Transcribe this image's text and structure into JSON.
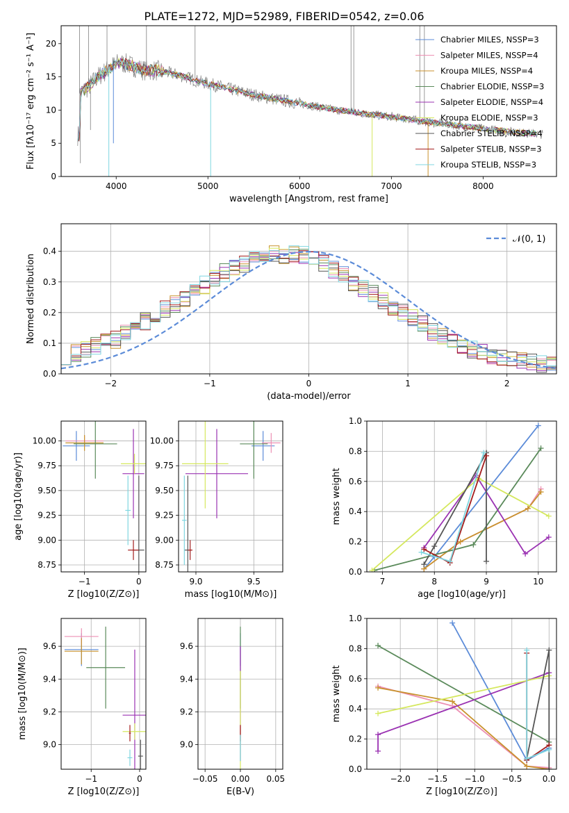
{
  "colors": {
    "chabrier_miles": "#5b8bd8",
    "salpeter_miles": "#ec8fb3",
    "kroupa_miles": "#c8922c",
    "chabrier_elodie": "#5a8a5a",
    "salpeter_elodie": "#9a32b2",
    "kroupa_elodie": "#d5e85e",
    "chabrier_stelib": "#555555",
    "salpeter_stelib": "#a31d1d",
    "kroupa_stelib": "#7fd6e0",
    "data": "#808080",
    "gauss": "#5b8bd8"
  },
  "chart_data": [
    {
      "type": "line",
      "title": "PLATE=1272, MJD=52989, FIBERID=0542, z=0.06",
      "xlabel": "wavelength [Angstrom, rest frame]",
      "ylabel": "Flux [fλ10⁻¹⁷ erg cm⁻² s⁻¹ A⁻¹]",
      "xlim": [
        3400,
        8800
      ],
      "ylim": [
        0,
        22.7
      ],
      "x_ticks": [
        4000,
        5000,
        6000,
        7000,
        8000
      ],
      "y_ticks": [
        0,
        5,
        10,
        15,
        20
      ],
      "grid": false,
      "legend_position": "top-right",
      "series": [
        {
          "name": "Chabrier MILES, NSSP=3"
        },
        {
          "name": "Salpeter MILES, NSSP=4"
        },
        {
          "name": "Kroupa MILES, NSSP=4"
        },
        {
          "name": "Chabrier ELODIE, NSSP=3"
        },
        {
          "name": "Salpeter ELODIE, NSSP=4"
        },
        {
          "name": "Kroupa ELODIE, NSSP=3"
        },
        {
          "name": "Chabrier STELIB, NSSP=4"
        },
        {
          "name": "Salpeter STELIB, NSSP=3"
        },
        {
          "name": "Kroupa STELIB, NSSP=3"
        }
      ],
      "continuum": {
        "x": [
          3600,
          3700,
          3800,
          3900,
          4000,
          4100,
          4200,
          4300,
          4400,
          4500,
          4600,
          4700,
          4800,
          4900,
          5000,
          5200,
          5400,
          5600,
          5800,
          6000,
          6200,
          6400,
          6600,
          6800,
          7000,
          7200,
          7400,
          7600,
          7800,
          8000,
          8200,
          8400,
          8600,
          8800
        ],
        "y": [
          12.5,
          13.5,
          15.0,
          16.0,
          17.0,
          17.0,
          16.5,
          16.0,
          16.0,
          15.8,
          15.5,
          15.2,
          14.8,
          14.3,
          14.0,
          13.3,
          12.6,
          12.0,
          11.5,
          11.0,
          10.5,
          10.0,
          9.7,
          9.3,
          9.0,
          8.6,
          8.2,
          7.9,
          7.5,
          7.2,
          6.9,
          6.6,
          6.4,
          6.2
        ]
      },
      "data_spikes": [
        {
          "x": 3600,
          "y": 22.7
        },
        {
          "x": 3610,
          "y": 2.0
        },
        {
          "x": 3700,
          "y": 22.7
        },
        {
          "x": 3720,
          "y": 7.0
        },
        {
          "x": 3900,
          "y": 22.7
        },
        {
          "x": 4330,
          "y": 22.7
        },
        {
          "x": 4860,
          "y": 22.7
        },
        {
          "x": 6560,
          "y": 22.7
        },
        {
          "x": 6590,
          "y": 22.7
        },
        {
          "x": 7310,
          "y": 22.7
        },
        {
          "x": 7360,
          "y": 22.7
        }
      ],
      "model_dips": [
        {
          "x": 3920,
          "y": 0
        },
        {
          "x": 3970,
          "y": 5.0
        },
        {
          "x": 5030,
          "y": 0
        },
        {
          "x": 6790,
          "y": 0
        },
        {
          "x": 7400,
          "y": 0
        }
      ]
    },
    {
      "type": "line",
      "xlabel": "(data-model)/error",
      "ylabel": "Normed distribution",
      "xlim": [
        -2.5,
        2.5
      ],
      "ylim": [
        0,
        0.49
      ],
      "x_ticks": [
        -2,
        -1,
        0,
        1,
        2
      ],
      "y_ticks": [
        0.0,
        0.1,
        0.2,
        0.3,
        0.4
      ],
      "grid": true,
      "legend": [
        "𝒩(0, 1)"
      ],
      "legend_position": "top-right",
      "gaussian_series": "N(0,1) dashed",
      "histogram_bins": [
        -2.5,
        -2.4,
        -2.3,
        -2.2,
        -2.1,
        -2.0,
        -1.9,
        -1.8,
        -1.7,
        -1.6,
        -1.5,
        -1.4,
        -1.3,
        -1.2,
        -1.1,
        -1.0,
        -0.9,
        -0.8,
        -0.7,
        -0.6,
        -0.5,
        -0.4,
        -0.3,
        -0.2,
        -0.1,
        0.0,
        0.1,
        0.2,
        0.3,
        0.4,
        0.5,
        0.6,
        0.7,
        0.8,
        0.9,
        1.0,
        1.1,
        1.2,
        1.3,
        1.4,
        1.5,
        1.6,
        1.7,
        1.8,
        1.9,
        2.0,
        2.1,
        2.2,
        2.3,
        2.4
      ],
      "histogram_mean": [
        0.06,
        0.07,
        0.08,
        0.09,
        0.1,
        0.11,
        0.13,
        0.15,
        0.17,
        0.19,
        0.21,
        0.23,
        0.25,
        0.27,
        0.29,
        0.31,
        0.33,
        0.35,
        0.36,
        0.37,
        0.38,
        0.39,
        0.39,
        0.39,
        0.39,
        0.38,
        0.36,
        0.34,
        0.32,
        0.3,
        0.28,
        0.26,
        0.24,
        0.22,
        0.2,
        0.18,
        0.16,
        0.14,
        0.12,
        0.1,
        0.09,
        0.08,
        0.07,
        0.06,
        0.05,
        0.05,
        0.04,
        0.04,
        0.03,
        0.03
      ]
    },
    {
      "type": "scatter",
      "xlabel": "Z [log10(Z/Z⊙)]",
      "ylabel": "age  [log10(age/yr)]",
      "xlim": [
        -1.43,
        0.13
      ],
      "ylim": [
        8.68,
        10.2
      ],
      "x_ticks": [
        -1,
        0
      ],
      "y_ticks": [
        8.75,
        9.0,
        9.25,
        9.5,
        9.75,
        10.0
      ],
      "grid": true,
      "points": [
        {
          "series": 0,
          "x": -1.15,
          "y": 9.95,
          "xerr": 0.25,
          "yerr": 0.15
        },
        {
          "series": 1,
          "x": -1.0,
          "y": 10.0,
          "xerr": 0.35,
          "yerr": 0.05
        },
        {
          "series": 2,
          "x": -1.0,
          "y": 9.98,
          "xerr": 0.35,
          "yerr": 0.08
        },
        {
          "series": 3,
          "x": -0.8,
          "y": 9.97,
          "xerr": 0.4,
          "yerr": 0.35
        },
        {
          "series": 4,
          "x": -0.1,
          "y": 9.67,
          "xerr": 0.2,
          "yerr": 0.45
        },
        {
          "series": 5,
          "x": -0.08,
          "y": 9.77,
          "xerr": 0.25,
          "yerr": 0.1
        },
        {
          "series": 6,
          "x": 0.0,
          "y": 8.9,
          "xerr": 0.1,
          "yerr": 0.75
        },
        {
          "series": 7,
          "x": -0.1,
          "y": 8.9,
          "xerr": 0.1,
          "yerr": 0.1
        },
        {
          "series": 8,
          "x": -0.2,
          "y": 9.3,
          "xerr": 0.05,
          "yerr": 0.35
        }
      ]
    },
    {
      "type": "scatter",
      "xlabel": "mass [log10(M/M⊙)]",
      "xlim": [
        8.85,
        9.75
      ],
      "ylim": [
        8.68,
        10.2
      ],
      "x_ticks": [
        9.0,
        9.5
      ],
      "y_ticks": [
        8.75,
        9.0,
        9.25,
        9.5,
        9.75,
        10.0
      ],
      "grid": true,
      "points": [
        {
          "series": 0,
          "x": 9.58,
          "y": 9.95,
          "xerr": 0.1,
          "yerr": 0.15
        },
        {
          "series": 1,
          "x": 9.65,
          "y": 9.98,
          "xerr": 0.08,
          "yerr": 0.1
        },
        {
          "series": 3,
          "x": 9.5,
          "y": 9.97,
          "xerr": 0.12,
          "yerr": 0.35
        },
        {
          "series": 4,
          "x": 9.18,
          "y": 9.67,
          "xerr": 0.27,
          "yerr": 0.45
        },
        {
          "series": 5,
          "x": 9.08,
          "y": 9.77,
          "xerr": 0.2,
          "yerr": 0.45
        },
        {
          "series": 6,
          "x": 8.93,
          "y": 8.9,
          "xerr": 0.03,
          "yerr": 0.75
        },
        {
          "series": 7,
          "x": 8.95,
          "y": 8.9,
          "xerr": 0.02,
          "yerr": 0.1
        },
        {
          "series": 8,
          "x": 8.9,
          "y": 9.2,
          "xerr": 0.02,
          "yerr": 0.45
        }
      ]
    },
    {
      "type": "line",
      "xlabel": "age  [log10(age/yr)]",
      "ylabel": "mass weight",
      "xlim": [
        6.7,
        10.35
      ],
      "ylim": [
        0,
        1.0
      ],
      "x_ticks": [
        7,
        8,
        9,
        10
      ],
      "y_ticks": [
        0.0,
        0.2,
        0.4,
        0.6,
        0.8,
        1.0
      ],
      "grid": true,
      "series": [
        {
          "x": [
            7.8,
            8.0,
            10.0
          ],
          "y": [
            0.02,
            0.1,
            0.97
          ]
        },
        {
          "x": [
            7.8,
            8.5,
            9.8,
            10.05
          ],
          "y": [
            0.02,
            0.2,
            0.42,
            0.55
          ]
        },
        {
          "x": [
            7.8,
            8.5,
            9.8,
            10.05
          ],
          "y": [
            0.02,
            0.2,
            0.42,
            0.53
          ]
        },
        {
          "x": [
            6.85,
            8.75,
            10.05
          ],
          "y": [
            0.01,
            0.18,
            0.82
          ]
        },
        {
          "x": [
            7.8,
            8.8,
            9.75,
            10.2
          ],
          "y": [
            0.16,
            0.64,
            0.12,
            0.23
          ]
        },
        {
          "x": [
            6.8,
            8.85,
            10.2
          ],
          "y": [
            0.01,
            0.62,
            0.37
          ]
        },
        {
          "x": [
            7.8,
            8.0,
            9.0,
            9.0
          ],
          "y": [
            0.05,
            0.17,
            0.79,
            0.07
          ]
        },
        {
          "x": [
            7.8,
            8.3,
            9.0
          ],
          "y": [
            0.15,
            0.06,
            0.77
          ]
        },
        {
          "x": [
            7.75,
            8.3,
            8.95
          ],
          "y": [
            0.13,
            0.07,
            0.79
          ]
        }
      ]
    },
    {
      "type": "scatter",
      "xlabel": "Z [log10(Z/Z⊙)]",
      "ylabel": "mass [log10(M/M⊙)]",
      "xlim": [
        -1.62,
        0.13
      ],
      "ylim": [
        8.85,
        9.77
      ],
      "x_ticks": [
        -1,
        0
      ],
      "y_ticks": [
        9.0,
        9.2,
        9.4,
        9.6
      ],
      "grid": true,
      "points": [
        {
          "series": 0,
          "x": -1.2,
          "y": 9.58,
          "xerr": 0.35,
          "yerr": 0.1
        },
        {
          "series": 1,
          "x": -1.2,
          "y": 9.66,
          "xerr": 0.35,
          "yerr": 0.05
        },
        {
          "series": 2,
          "x": -1.2,
          "y": 9.57,
          "xerr": 0.35,
          "yerr": 0.08
        },
        {
          "series": 3,
          "x": -0.7,
          "y": 9.47,
          "xerr": 0.4,
          "yerr": 0.25
        },
        {
          "series": 4,
          "x": -0.1,
          "y": 9.18,
          "xerr": 0.25,
          "yerr": 0.4
        },
        {
          "series": 5,
          "x": -0.1,
          "y": 9.08,
          "xerr": 0.25,
          "yerr": 0.05
        },
        {
          "series": 6,
          "x": 0.02,
          "y": 8.93,
          "xerr": 0.05,
          "yerr": 0.1
        },
        {
          "series": 7,
          "x": -0.2,
          "y": 9.07,
          "xerr": 0.02,
          "yerr": 0.05
        },
        {
          "series": 8,
          "x": -0.2,
          "y": 8.92,
          "xerr": 0.05,
          "yerr": 0.05
        }
      ]
    },
    {
      "type": "scatter",
      "xlabel": "E(B-V)",
      "xlim": [
        -0.06,
        0.06
      ],
      "ylim": [
        8.85,
        9.77
      ],
      "x_ticks": [
        -0.05,
        0.0,
        0.05
      ],
      "y_ticks": [
        9.0,
        9.2,
        9.4,
        9.6
      ],
      "grid": true,
      "points": [
        {
          "series": 0,
          "x": 0.0,
          "y": 9.58,
          "xerr": 0.0,
          "yerr": 0.1
        },
        {
          "series": 3,
          "x": 0.0,
          "y": 9.47,
          "xerr": 0.0,
          "yerr": 0.25
        },
        {
          "series": 4,
          "x": 0.0,
          "y": 9.25,
          "xerr": 0.0,
          "yerr": 0.35
        },
        {
          "series": 5,
          "x": 0.0,
          "y": 9.15,
          "xerr": 0.0,
          "yerr": 0.3
        },
        {
          "series": 7,
          "x": 0.0,
          "y": 9.07,
          "xerr": 0.0,
          "yerr": 0.05
        },
        {
          "series": 8,
          "x": 0.0,
          "y": 8.98,
          "xerr": 0.0,
          "yerr": 0.08
        }
      ]
    },
    {
      "type": "line",
      "xlabel": "Z [log10(Z/Z⊙)]",
      "ylabel": "mass weight",
      "xlim": [
        -2.45,
        0.1
      ],
      "ylim": [
        0,
        1.0
      ],
      "x_ticks": [
        -2.0,
        -1.5,
        -1.0,
        -0.5,
        0.0
      ],
      "y_ticks": [
        0.0,
        0.2,
        0.4,
        0.6,
        0.8,
        1.0
      ],
      "grid": true,
      "series": [
        {
          "x": [
            -1.3,
            -0.3,
            0.0
          ],
          "y": [
            0.97,
            0.06,
            0.14
          ]
        },
        {
          "x": [
            -2.3,
            -1.3,
            -0.3,
            0.0
          ],
          "y": [
            0.55,
            0.42,
            0.02,
            0.01
          ]
        },
        {
          "x": [
            -2.3,
            -1.3,
            -0.3,
            0.0
          ],
          "y": [
            0.54,
            0.45,
            0.02,
            0.0
          ]
        },
        {
          "x": [
            -2.3,
            0.0
          ],
          "y": [
            0.82,
            0.18
          ]
        },
        {
          "x": [
            -2.3,
            -2.3,
            0.0
          ],
          "y": [
            0.12,
            0.23,
            0.64
          ]
        },
        {
          "x": [
            -2.3,
            0.0
          ],
          "y": [
            0.37,
            0.62
          ]
        },
        {
          "x": [
            -0.3,
            0.0,
            0.0
          ],
          "y": [
            0.07,
            0.79,
            0.0
          ]
        },
        {
          "x": [
            -0.3,
            -0.3,
            0.0
          ],
          "y": [
            0.77,
            0.06,
            0.16
          ]
        },
        {
          "x": [
            -0.3,
            -0.3,
            0.0
          ],
          "y": [
            0.79,
            0.07,
            0.13
          ]
        }
      ]
    }
  ]
}
